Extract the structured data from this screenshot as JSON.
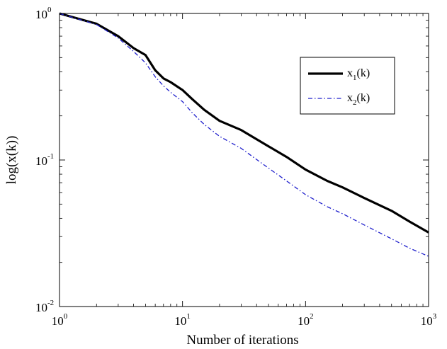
{
  "chart_data": {
    "type": "line",
    "xscale": "log",
    "yscale": "log",
    "xlim": [
      1,
      1000
    ],
    "ylim": [
      0.01,
      1
    ],
    "xlabel": "Number of iterations",
    "ylabel": "log(x(k))",
    "x_ticks": [
      {
        "value": 1,
        "base": "10",
        "exp": "0"
      },
      {
        "value": 10,
        "base": "10",
        "exp": "1"
      },
      {
        "value": 100,
        "base": "10",
        "exp": "2"
      },
      {
        "value": 1000,
        "base": "10",
        "exp": "3"
      }
    ],
    "y_ticks": [
      {
        "value": 0.01,
        "base": "10",
        "exp": "-2"
      },
      {
        "value": 0.1,
        "base": "10",
        "exp": "-1"
      },
      {
        "value": 1,
        "base": "10",
        "exp": "0"
      }
    ],
    "grid": false,
    "legend_position": "top-right",
    "series": [
      {
        "name": "x1(k)",
        "legend_main": "x",
        "legend_sub": "1",
        "legend_tail": "(k)",
        "color": "#000000",
        "style": "solid",
        "x": [
          1,
          2,
          3,
          4,
          5,
          6,
          7,
          8,
          10,
          12,
          15,
          20,
          30,
          50,
          70,
          100,
          150,
          200,
          300,
          500,
          700,
          1000
        ],
        "y": [
          1.0,
          0.85,
          0.7,
          0.58,
          0.52,
          0.41,
          0.36,
          0.34,
          0.3,
          0.26,
          0.22,
          0.185,
          0.16,
          0.124,
          0.105,
          0.086,
          0.072,
          0.065,
          0.055,
          0.045,
          0.038,
          0.032
        ]
      },
      {
        "name": "x2(k)",
        "legend_main": "x",
        "legend_sub": "2",
        "legend_tail": "(k)",
        "color": "#1f1fcc",
        "style": "dash-dot",
        "x": [
          1,
          2,
          3,
          4,
          5,
          6,
          7,
          8,
          10,
          12,
          15,
          20,
          30,
          50,
          70,
          100,
          150,
          200,
          300,
          500,
          700,
          1000
        ],
        "y": [
          1.0,
          0.84,
          0.68,
          0.55,
          0.46,
          0.37,
          0.32,
          0.29,
          0.25,
          0.21,
          0.175,
          0.145,
          0.12,
          0.088,
          0.072,
          0.058,
          0.048,
          0.043,
          0.036,
          0.029,
          0.025,
          0.022
        ]
      }
    ]
  }
}
